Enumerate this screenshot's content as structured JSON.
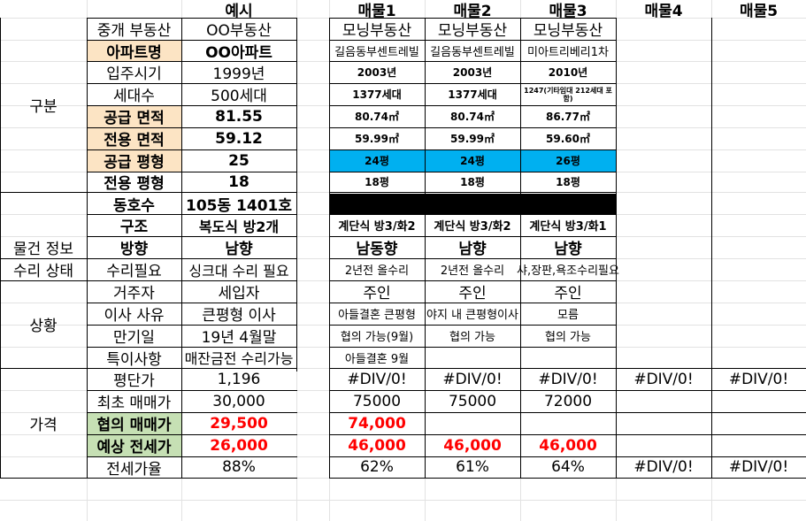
{
  "headers": {
    "example": "예시",
    "listing1": "매물1",
    "listing2": "매물2",
    "listing3": "매물3",
    "listing4": "매물4",
    "listing5": "매물5"
  },
  "sections": {
    "division": "구분",
    "property_info": "물건 정보",
    "repair_status": "수리 상태",
    "situation": "상황",
    "price": "가격"
  },
  "row_labels": {
    "agency": "중개 부동산",
    "apt_name": "아파트명",
    "move_in_year": "입주시기",
    "households": "세대수",
    "supply_area": "공급 면적",
    "exclusive_area": "전용 면적",
    "supply_pyeong": "공급 평형",
    "exclusive_pyeong": "전용 평형",
    "dong_ho": "동호수",
    "structure": "구조",
    "direction": "방향",
    "repair_needed": "수리필요",
    "resident": "거주자",
    "move_reason": "이사 사유",
    "expiry": "만기일",
    "notes": "특이사항",
    "price_per_pyeong": "평단가",
    "initial_price": "최초 매매가",
    "negotiated_price": "협의 매매가",
    "expected_jeonse": "예상 전세가",
    "jeonse_ratio": "전세가율"
  },
  "example": {
    "agency": "OO부동산",
    "apt_name": "OO아파트",
    "move_in_year": "1999년",
    "households": "500세대",
    "supply_area": "81.55",
    "exclusive_area": "59.12",
    "supply_pyeong": "25",
    "exclusive_pyeong": "18",
    "dong_ho": "105동 1401호",
    "structure": "복도식 방2개",
    "direction": "남향",
    "repair_state": "싱크대 수리 필요",
    "resident": "세입자",
    "move_reason": "큰평형 이사",
    "expiry": "19년 4월말",
    "notes": "매잔금전 수리가능",
    "price_per_pyeong": "1,196",
    "initial_price": "30,000",
    "negotiated_price": "29,500",
    "expected_jeonse": "26,000",
    "jeonse_ratio": "88%"
  },
  "listings": [
    {
      "agency": "모닝부동산",
      "apt_name": "길음동부센트레빌",
      "move_in_year": "2003년",
      "households": "1377세대",
      "supply_area": "80.74㎡",
      "exclusive_area": "59.99㎡",
      "supply_pyeong": "24평",
      "exclusive_pyeong": "18평",
      "structure": "계단식 방3/화2",
      "direction": "남동향",
      "repair_state": "2년전 올수리",
      "resident": "주인",
      "move_reason": "아들결혼 큰평형",
      "expiry": "협의 가능(9월)",
      "notes": "아들결혼 9월",
      "price_per_pyeong": "#DIV/0!",
      "initial_price": "75000",
      "negotiated_price": "74,000",
      "expected_jeonse": "46,000",
      "jeonse_ratio": "62%"
    },
    {
      "agency": "모닝부동산",
      "apt_name": "길음동부센트레빌",
      "move_in_year": "2003년",
      "households": "1377세대",
      "supply_area": "80.74㎡",
      "exclusive_area": "59.99㎡",
      "supply_pyeong": "24평",
      "exclusive_pyeong": "18평",
      "structure": "계단식 방3/화2",
      "direction": "남향",
      "repair_state": "2년전 올수리",
      "resident": "주인",
      "move_reason": "야지 내 큰평형이사",
      "expiry": "협의 가능",
      "notes": "",
      "price_per_pyeong": "#DIV/0!",
      "initial_price": "75000",
      "negotiated_price": "",
      "expected_jeonse": "46,000",
      "jeonse_ratio": "61%"
    },
    {
      "agency": "모닝부동산",
      "apt_name": "미아트리베리1차",
      "move_in_year": "2010년",
      "households": "1247(기타임대 212세대 포함)",
      "supply_area": "86.77㎡",
      "exclusive_area": "59.60㎡",
      "supply_pyeong": "26평",
      "exclusive_pyeong": "18평",
      "structure": "계단식 방3/화1",
      "direction": "남향",
      "repair_state": "샤,장판,욕조수리필요",
      "resident": "주인",
      "move_reason": "모름",
      "expiry": "협의 가능",
      "notes": "",
      "price_per_pyeong": "#DIV/0!",
      "initial_price": "72000",
      "negotiated_price": "",
      "expected_jeonse": "46,000",
      "jeonse_ratio": "64%"
    },
    {
      "price_per_pyeong": "#DIV/0!",
      "jeonse_ratio": "#DIV/0!"
    },
    {
      "price_per_pyeong": "#DIV/0!",
      "jeonse_ratio": "#DIV/0!"
    }
  ],
  "colors": {
    "label_fill": "#fce4c4",
    "price_label_fill": "#c6e0b4",
    "highlight_fill": "#00b0f0",
    "accent_text": "#ff0000",
    "gridline": "#e2e2e2"
  }
}
